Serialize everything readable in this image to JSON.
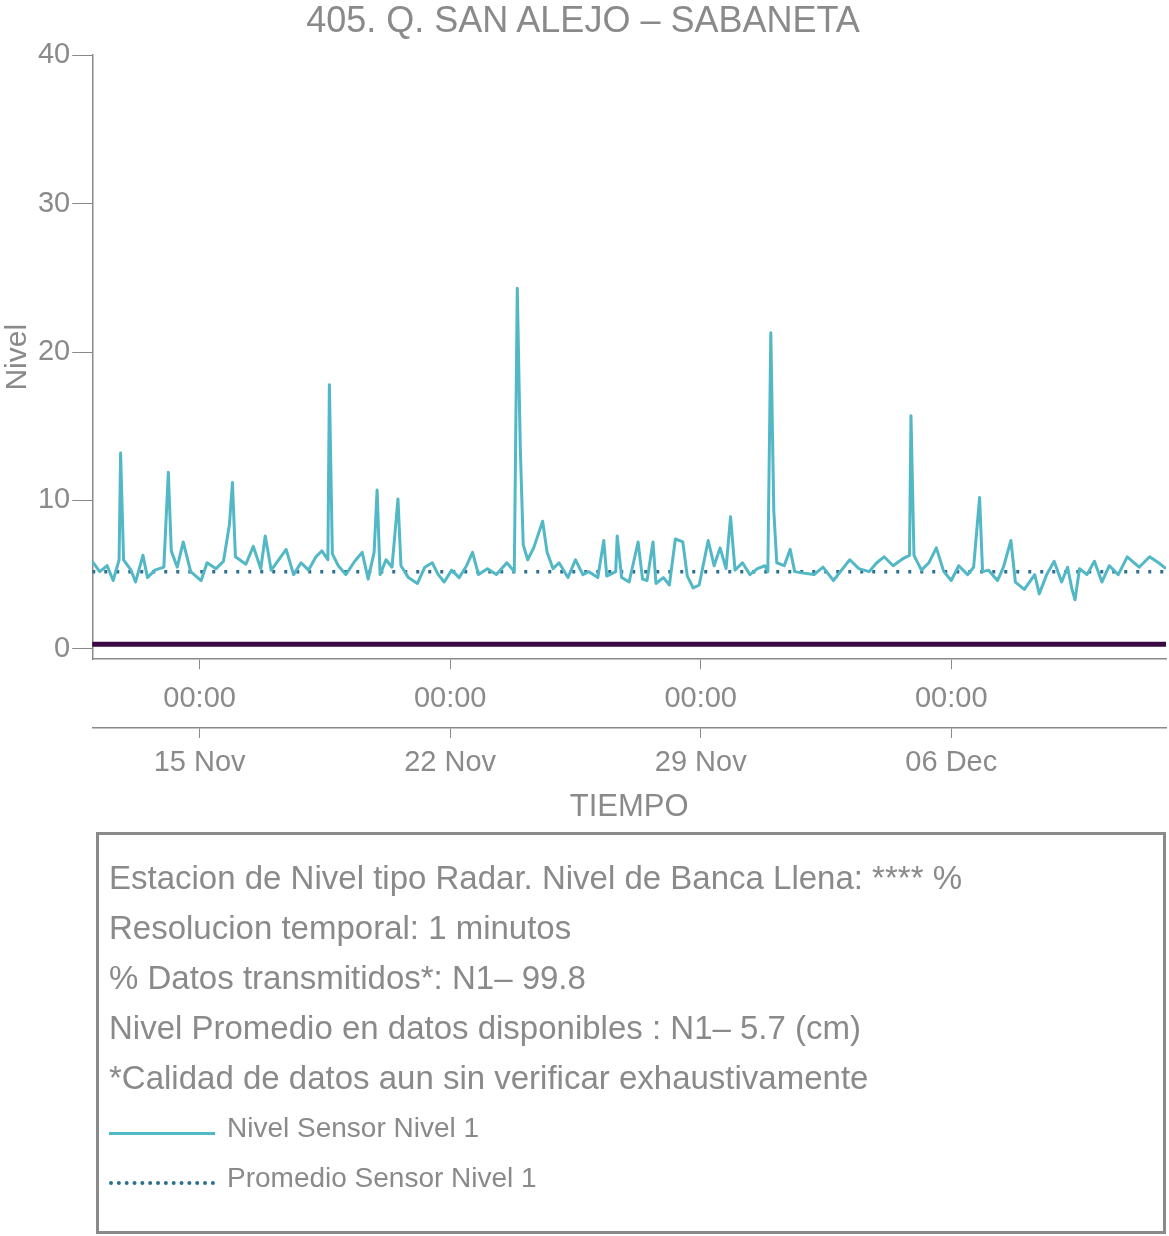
{
  "chart_data": {
    "type": "line",
    "title": "405. Q. SAN ALEJO – SABANETA",
    "xlabel": "TIEMPO",
    "ylabel": "Nivel",
    "xlim": [
      "--11-12T00:00",
      "--12-12T00:00"
    ],
    "xticks": [
      {
        "value": "--11-15T00:00",
        "label": "00:00"
      },
      {
        "value": "--11-22T00:00",
        "label": "00:00"
      },
      {
        "value": "--11-29T00:00",
        "label": "00:00"
      },
      {
        "value": "--12-06T00:00",
        "label": "00:00"
      }
    ],
    "x2lim": [
      "--11-12T00:00",
      "--12-12T00:00"
    ],
    "x2ticks": [
      {
        "value": "--11-15T00:00",
        "label": "15 Nov"
      },
      {
        "value": "--11-22T00:00",
        "label": "22 Nov"
      },
      {
        "value": "--11-29T00:00",
        "label": "29 Nov"
      },
      {
        "value": "--12-06T00:00",
        "label": "06 Dec"
      }
    ],
    "ylim": [
      -0.7,
      40
    ],
    "yticks": [
      0,
      10,
      20,
      30,
      40
    ],
    "grid": false,
    "legend": "bottom",
    "series": [
      {
        "name": "Nivel Sensor Nivel 1",
        "color": "#52b8c6",
        "line_style": "solid",
        "marker": "none",
        "x": [
          "--11-12T00:00",
          "--11-12T05:00",
          "--11-12T10:00",
          "--11-12T14:00",
          "--11-12T18:00",
          "--11-12T19:00",
          "--11-12T21:00",
          "--11-13T02:00",
          "--11-13T05:00",
          "--11-13T10:00",
          "--11-13T13:00",
          "--11-13T18:00",
          "--11-14T00:00",
          "--11-14T03:00",
          "--11-14T05:00",
          "--11-14T09:00",
          "--11-14T13:00",
          "--11-14T18:00",
          "--11-15T01:00",
          "--11-15T05:00",
          "--11-15T11:00",
          "--11-15T16:00",
          "--11-15T20:00",
          "--11-15T22:00",
          "--11-16T00:00",
          "--11-16T07:00",
          "--11-16T12:00",
          "--11-16T17:00",
          "--11-16T20:00",
          "--11-17T00:00",
          "--11-17T05:00",
          "--11-17T10:00",
          "--11-17T15:00",
          "--11-17T20:00",
          "--11-18T01:00",
          "--11-18T06:00",
          "--11-18T10:00",
          "--11-18T14:00",
          "--11-18T15:00",
          "--11-18T17:00",
          "--11-18T21:00",
          "--11-19T02:00",
          "--11-19T08:00",
          "--11-19T13:00",
          "--11-19T17:00",
          "--11-19T21:00",
          "--11-19T23:00",
          "--11-20T01:00",
          "--11-20T05:00",
          "--11-20T09:00",
          "--11-20T13:00",
          "--11-20T15:00",
          "--11-20T20:00",
          "--11-21T02:00",
          "--11-21T07:00",
          "--11-21T12:00",
          "--11-21T16:00",
          "--11-21T20:00",
          "--11-22T01:00",
          "--11-22T06:00",
          "--11-22T11:00",
          "--11-22T15:00",
          "--11-22T19:00",
          "--11-23T01:00",
          "--11-23T07:00",
          "--11-23T14:00",
          "--11-23T19:00",
          "--11-23T21:00",
          "--11-23T23:00",
          "--11-24T01:00",
          "--11-24T04:00",
          "--11-24T08:00",
          "--11-24T14:00",
          "--11-24T17:00",
          "--11-24T21:00",
          "--11-25T01:00",
          "--11-25T07:00",
          "--11-25T12:00",
          "--11-25T17:00",
          "--11-25T21:00",
          "--11-26T03:00",
          "--11-26T07:00",
          "--11-26T09:00",
          "--11-26T15:00",
          "--11-26T16:00",
          "--11-26T19:00",
          "--11-27T00:00",
          "--11-27T06:00",
          "--11-27T09:00",
          "--11-27T12:00",
          "--11-27T16:00",
          "--11-27T18:00",
          "--11-27T23:00",
          "--11-28T03:00",
          "--11-28T07:00",
          "--11-28T12:00",
          "--11-28T15:00",
          "--11-28T19:00",
          "--11-28T23:00",
          "--11-29T05:00",
          "--11-29T09:00",
          "--11-29T13:00",
          "--11-29T17:00",
          "--11-29T20:00",
          "--11-29T23:00",
          "--11-30T04:00",
          "--11-30T09:00",
          "--11-30T14:00",
          "--11-30T19:00",
          "--11-30T21:00",
          "--11-30T23:00",
          "--12-01T01:00",
          "--12-01T03:00",
          "--12-01T08:00",
          "--12-01T12:00",
          "--12-01T15:00",
          "--12-01T21:00",
          "--12-02T04:00",
          "--12-02T10:00",
          "--12-02T17:00",
          "--12-03T00:00",
          "--12-03T04:00",
          "--12-03T10:00",
          "--12-03T17:00",
          "--12-03T22:00",
          "--12-04T03:00",
          "--12-04T09:00",
          "--12-04T16:00",
          "--12-04T20:00",
          "--12-04T21:00",
          "--12-04T23:00",
          "--12-05T04:00",
          "--12-05T09:00",
          "--12-05T14:00",
          "--12-05T19:00",
          "--12-06T00:00",
          "--12-06T05:00",
          "--12-06T11:00",
          "--12-06T15:00",
          "--12-06T19:00",
          "--12-06T21:00",
          "--12-07T01:00",
          "--12-07T07:00",
          "--12-07T11:00",
          "--12-07T16:00",
          "--12-07T19:00",
          "--12-08T01:00",
          "--12-08T08:00",
          "--12-08T11:00",
          "--12-08T16:00",
          "--12-08T21:00",
          "--12-09T02:00",
          "--12-09T06:00",
          "--12-09T09:00",
          "--12-09T11:00",
          "--12-09T14:00",
          "--12-09T19:00",
          "--12-10T00:00",
          "--12-10T05:00",
          "--12-10T10:00",
          "--12-10T16:00",
          "--12-10T22:00",
          "--12-11T06:00",
          "--12-11T13:00",
          "--12-11T19:00",
          "--12-12T00:00"
        ],
        "values": [
          5.9,
          5.2,
          5.6,
          4.6,
          6.0,
          13.2,
          6.0,
          5.3,
          4.5,
          6.3,
          4.8,
          5.3,
          5.5,
          11.9,
          6.6,
          5.5,
          7.2,
          5.2,
          4.6,
          5.8,
          5.4,
          5.9,
          8.4,
          11.2,
          6.2,
          5.7,
          6.9,
          5.4,
          7.6,
          5.3,
          6.0,
          6.7,
          5.0,
          5.8,
          5.3,
          6.2,
          6.6,
          6.0,
          17.8,
          6.4,
          5.6,
          5.0,
          5.9,
          6.5,
          4.7,
          6.5,
          10.7,
          5.0,
          6.0,
          5.5,
          10.1,
          5.6,
          4.8,
          4.4,
          5.5,
          5.8,
          5.0,
          4.5,
          5.3,
          4.8,
          5.6,
          6.5,
          5.0,
          5.4,
          5.0,
          5.8,
          5.2,
          24.3,
          13.6,
          7.0,
          6.0,
          6.8,
          8.6,
          6.5,
          5.4,
          5.8,
          4.8,
          6.0,
          5.0,
          5.2,
          4.8,
          7.3,
          4.9,
          5.2,
          7.6,
          4.8,
          4.5,
          7.2,
          4.7,
          4.6,
          7.2,
          4.4,
          4.8,
          4.3,
          7.4,
          7.2,
          4.9,
          4.1,
          4.3,
          7.3,
          5.6,
          6.8,
          5.4,
          8.9,
          5.3,
          5.8,
          5.0,
          5.4,
          5.6,
          5.2,
          21.3,
          9.3,
          5.8,
          5.6,
          6.7,
          5.2,
          5.1,
          5.0,
          5.5,
          4.6,
          5.5,
          6.0,
          5.4,
          5.2,
          5.8,
          6.2,
          5.6,
          6.1,
          6.3,
          15.7,
          6.3,
          5.3,
          5.8,
          6.8,
          5.2,
          4.6,
          5.6,
          5.0,
          5.5,
          10.2,
          5.2,
          5.3,
          4.6,
          5.5,
          7.3,
          4.5,
          4.0,
          5.0,
          3.7,
          5.0,
          5.9,
          4.5,
          5.5,
          4.0,
          3.3,
          5.4,
          5.0,
          5.9,
          4.5,
          5.6,
          5.0,
          6.2,
          5.5,
          6.2,
          5.8,
          5.4
        ]
      },
      {
        "name": "Promedio Sensor Nivel 1",
        "color": "#2e6f8e",
        "line_style": "dotted",
        "marker": "none",
        "x": [
          "--11-12T00:00",
          "--12-12T00:00"
        ],
        "values": [
          5.2,
          5.2
        ]
      }
    ],
    "ref_lines": [
      {
        "axis": "y",
        "value": 0.3,
        "color": "#3b0a45",
        "line_style": "solid"
      }
    ],
    "annotations": [
      "Estacion de Nivel tipo Radar. Nivel de Banca Llena: **** %",
      "Resolucion temporal: 1 minutos",
      "% Datos transmitidos*: N1– 99.8",
      "Nivel Promedio en datos disponibles : N1–  5.7 (cm)",
      "*Calidad de datos aun sin verificar exhaustivamente"
    ]
  }
}
